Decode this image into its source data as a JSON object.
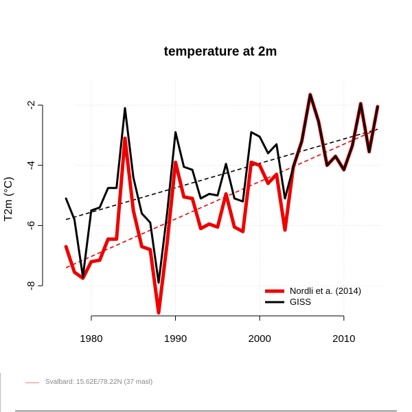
{
  "chart_data": {
    "type": "line",
    "title": "temperature at 2m",
    "ylabel": "T2m  (°C)",
    "xlabel": "",
    "xlim": [
      1976.5,
      2014.5
    ],
    "ylim": [
      -9.0,
      -1.2
    ],
    "x_ticks": [
      1980,
      1990,
      2000,
      2010
    ],
    "y_ticks": [
      -8,
      -6,
      -4,
      -2
    ],
    "grid": true,
    "legend_position": "bottom-right",
    "x": [
      1977,
      1978,
      1979,
      1980,
      1981,
      1982,
      1983,
      1984,
      1985,
      1986,
      1987,
      1988,
      1989,
      1990,
      1991,
      1992,
      1993,
      1994,
      1995,
      1996,
      1997,
      1998,
      1999,
      2000,
      2001,
      2002,
      2003,
      2004,
      2005,
      2006,
      2007,
      2008,
      2009,
      2010,
      2011,
      2012,
      2013,
      2014
    ],
    "series": [
      {
        "name": "Nordli et a. (2014)",
        "color": "#ee0000",
        "values": [
          -6.7,
          -7.55,
          -7.75,
          -7.2,
          -7.15,
          -6.45,
          -6.45,
          -3.1,
          -5.5,
          -6.7,
          -6.8,
          -8.9,
          -6.6,
          -3.9,
          -5.05,
          -5.1,
          -6.1,
          -5.95,
          -6.05,
          -4.95,
          -6.05,
          -6.2,
          -3.9,
          -4.0,
          -4.6,
          -4.3,
          -6.15,
          -4.05,
          -3.2,
          -1.65,
          -2.55,
          -4.0,
          -3.7,
          -4.15,
          -3.35,
          -1.95,
          -3.55,
          -2.05
        ],
        "trend": [
          -7.4,
          -2.8
        ]
      },
      {
        "name": "GISS",
        "color": "#000000",
        "values": [
          -5.1,
          -5.8,
          -7.7,
          -5.5,
          -5.4,
          -4.75,
          -4.75,
          -2.1,
          -4.4,
          -5.6,
          -5.9,
          -7.9,
          -5.6,
          -2.9,
          -4.05,
          -4.15,
          -5.1,
          -4.95,
          -5.0,
          -3.95,
          -5.1,
          -5.2,
          -2.9,
          -3.05,
          -3.6,
          -3.3,
          -5.1,
          -4.05,
          -3.2,
          -1.65,
          -2.55,
          -4.0,
          -3.7,
          -4.15,
          -3.35,
          -1.95,
          -3.55,
          -2.05
        ],
        "trend": [
          -5.8,
          -2.8
        ]
      }
    ],
    "annotation": "Svalbard: 15.62E/78.22N (37 masl)"
  }
}
